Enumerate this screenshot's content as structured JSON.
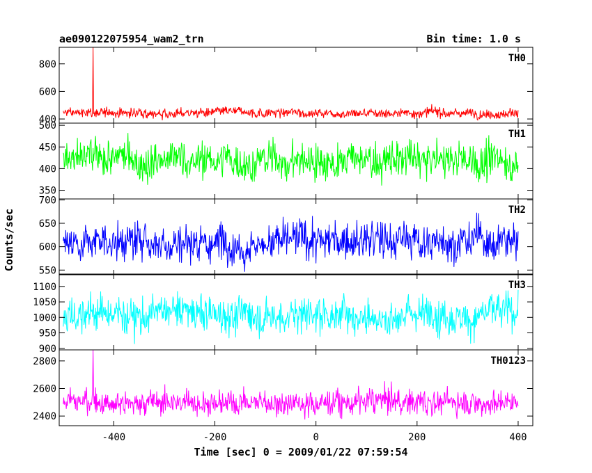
{
  "header": {
    "title": "ae090122075954_wam2_trn",
    "bin_time": "Bin time: 1.0 s"
  },
  "chart_data": {
    "type": "line",
    "xlabel": "Time [sec] 0 = 2009/01/22 07:59:54",
    "ylabel": "Counts/sec",
    "xlim": [
      -508,
      429
    ],
    "x_ticks": [
      -400,
      -200,
      0,
      200,
      400
    ],
    "x_range": [
      -500,
      400
    ],
    "bin_time_s": 1.0,
    "panels": [
      {
        "name": "TH0",
        "color": "#ff0000",
        "ylim": [
          370,
          920
        ],
        "yticks": [
          400,
          600,
          800
        ],
        "mean": 445,
        "amp": 28,
        "spikes": [
          {
            "x": -441,
            "y": 920
          }
        ]
      },
      {
        "name": "TH1",
        "color": "#00ff00",
        "ylim": [
          330,
          505
        ],
        "yticks": [
          350,
          400,
          450,
          500
        ],
        "mean": 418,
        "amp": 34,
        "spikes": []
      },
      {
        "name": "TH2",
        "color": "#0000ff",
        "ylim": [
          540,
          702
        ],
        "yticks": [
          550,
          600,
          650,
          700
        ],
        "mean": 612,
        "amp": 33,
        "spikes": []
      },
      {
        "name": "TH3",
        "color": "#00ffff",
        "ylim": [
          895,
          1140
        ],
        "yticks": [
          900,
          950,
          1000,
          1050,
          1100
        ],
        "mean": 1012,
        "amp": 48,
        "spikes": []
      },
      {
        "name": "TH0123",
        "color": "#ff00ff",
        "ylim": [
          2330,
          2880
        ],
        "yticks": [
          2400,
          2600,
          2800
        ],
        "mean": 2505,
        "amp": 75,
        "spikes": [
          {
            "x": -441,
            "y": 2880
          }
        ]
      }
    ]
  }
}
